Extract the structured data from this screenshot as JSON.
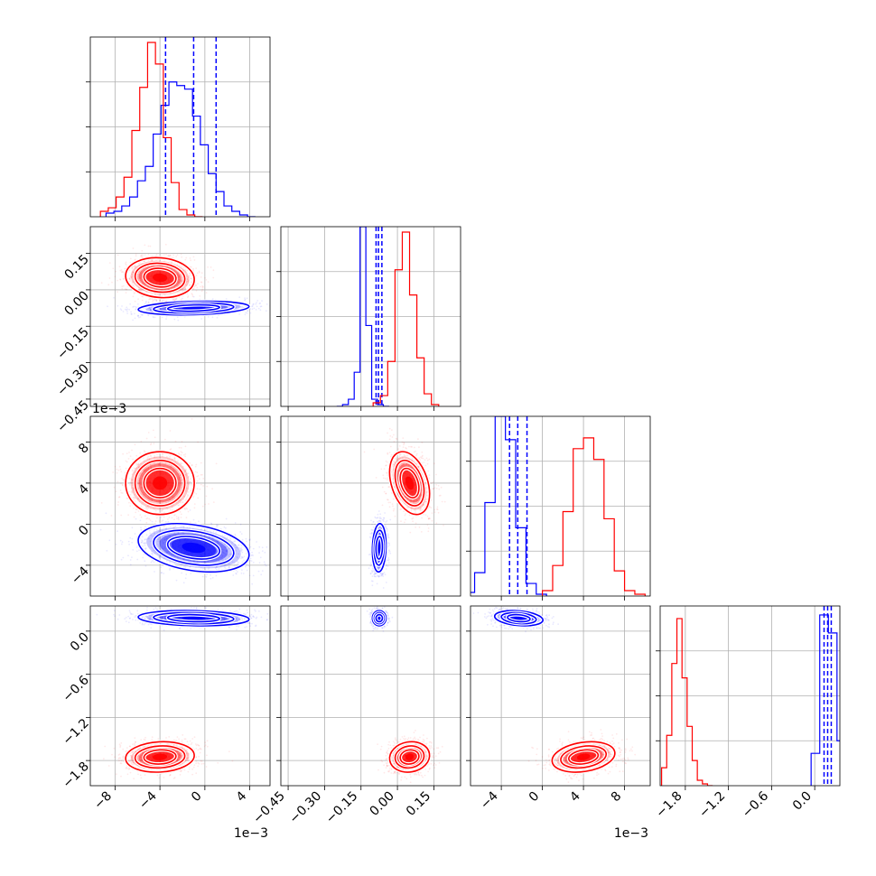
{
  "chart_data": {
    "type": "corner",
    "grid": true,
    "parameters": [
      {
        "ticks": [
          -8,
          -4,
          0,
          4
        ],
        "tick_labels": [
          "−8",
          "−4",
          "0",
          "4"
        ],
        "range": [
          -10.2,
          5.8
        ],
        "offset_label": "1e−3"
      },
      {
        "ticks": [
          -0.45,
          -0.3,
          -0.15,
          0.0,
          0.15
        ],
        "tick_labels": [
          "−0.45",
          "−0.30",
          "−0.15",
          "0.00",
          "0.15"
        ],
        "range": [
          -0.48,
          0.26
        ],
        "offset_label": ""
      },
      {
        "ticks": [
          -4,
          0,
          4,
          8
        ],
        "tick_labels": [
          "−4",
          "0",
          "4",
          "8"
        ],
        "range": [
          -7.0,
          10.5
        ],
        "offset_label": "1e−3"
      },
      {
        "ticks": [
          -1.8,
          -1.2,
          -0.6,
          0.0
        ],
        "tick_labels": [
          "−1.8",
          "−1.2",
          "−0.6",
          "0.0"
        ],
        "range": [
          -2.15,
          0.35
        ],
        "offset_label": ""
      }
    ],
    "series": [
      {
        "color": "#0000ff",
        "mean": [
          -1.0,
          -0.075,
          -2.3,
          0.18
        ],
        "sd": [
          2.1,
          0.012,
          1.0,
          0.045
        ],
        "quantiles": [
          [
            -3.5,
            -1.0,
            1.0
          ],
          [
            -0.088,
            -0.078,
            -0.064
          ],
          [
            -3.2,
            -2.4,
            -1.5
          ],
          [
            0.13,
            0.18,
            0.23
          ]
        ],
        "histograms": [
          {
            "edges_from": -8.8,
            "step": 0.7,
            "counts": [
              0.02,
              0.03,
              0.06,
              0.11,
              0.2,
              0.28,
              0.46,
              0.62,
              0.75,
              0.73,
              0.71,
              0.56,
              0.4,
              0.24,
              0.14,
              0.06,
              0.03,
              0.01,
              0.0
            ]
          },
          {
            "edges_from": -0.25,
            "step": 0.024,
            "counts": [
              0.0,
              0.01,
              0.04,
              0.19,
              1.0,
              0.45,
              0.04,
              0.01,
              0.0
            ]
          },
          {
            "edges_from": -7.6,
            "step": 1.0,
            "counts": [
              0.02,
              0.13,
              0.52,
              1.0,
              0.87,
              0.38,
              0.07,
              0.01
            ]
          },
          {
            "edges_from": -0.05,
            "step": 0.12,
            "counts": [
              0.18,
              0.95,
              0.85,
              0.25
            ]
          }
        ]
      },
      {
        "color": "#ff0000",
        "mean": [
          -4.0,
          0.05,
          4.0,
          -1.75
        ],
        "sd": [
          1.3,
          0.035,
          1.3,
          0.09
        ],
        "quantiles": [],
        "histograms": [
          {
            "edges_from": -9.3,
            "step": 0.7,
            "counts": [
              0.03,
              0.05,
              0.11,
              0.22,
              0.48,
              0.72,
              0.97,
              0.85,
              0.44,
              0.19,
              0.04,
              0.01,
              0.0
            ]
          },
          {
            "edges_from": -0.1,
            "step": 0.03,
            "counts": [
              0.02,
              0.06,
              0.25,
              0.76,
              0.97,
              0.62,
              0.27,
              0.07,
              0.01
            ]
          },
          {
            "edges_from": 0.0,
            "step": 1.0,
            "counts": [
              0.03,
              0.17,
              0.47,
              0.82,
              0.88,
              0.76,
              0.43,
              0.14,
              0.03,
              0.01
            ]
          },
          {
            "edges_from": -2.13,
            "step": 0.071,
            "counts": [
              0.1,
              0.28,
              0.68,
              0.93,
              0.6,
              0.33,
              0.14,
              0.03,
              0.01,
              0.0
            ]
          }
        ]
      }
    ],
    "correlations": [
      {
        "pair": [
          0,
          1
        ],
        "color": "#0000ff",
        "rho": 0.22
      },
      {
        "pair": [
          0,
          1
        ],
        "color": "#ff0000",
        "rho": -0.1
      },
      {
        "pair": [
          0,
          2
        ],
        "color": "#0000ff",
        "rho": -0.3
      },
      {
        "pair": [
          0,
          2
        ],
        "color": "#ff0000",
        "rho": 0.0
      },
      {
        "pair": [
          1,
          2
        ],
        "color": "#0000ff",
        "rho": 0.1
      },
      {
        "pair": [
          1,
          2
        ],
        "color": "#ff0000",
        "rho": -0.35
      },
      {
        "pair": [
          0,
          3
        ],
        "color": "#0000ff",
        "rho": -0.15
      },
      {
        "pair": [
          0,
          3
        ],
        "color": "#ff0000",
        "rho": 0.1
      },
      {
        "pair": [
          1,
          3
        ],
        "color": "#0000ff",
        "rho": 0.0
      },
      {
        "pair": [
          1,
          3
        ],
        "color": "#ff0000",
        "rho": 0.1
      },
      {
        "pair": [
          2,
          3
        ],
        "color": "#0000ff",
        "rho": -0.25
      },
      {
        "pair": [
          2,
          3
        ],
        "color": "#ff0000",
        "rho": 0.25
      }
    ]
  }
}
